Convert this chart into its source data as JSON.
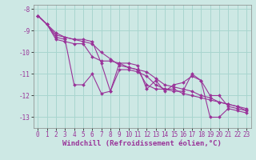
{
  "title": "",
  "xlabel": "Windchill (Refroidissement éolien,°C)",
  "background_color": "#cde8e4",
  "grid_color": "#a8d5cf",
  "line_color": "#993399",
  "series": [
    {
      "x": [
        0,
        1,
        2,
        3,
        4,
        5,
        6,
        7,
        8,
        9,
        10,
        11,
        12,
        13,
        14,
        15,
        16,
        17,
        18,
        19,
        20,
        21,
        22,
        23
      ],
      "y": [
        -8.3,
        -8.7,
        -9.3,
        -9.4,
        -11.5,
        -11.5,
        -11.0,
        -11.9,
        -11.8,
        -10.5,
        -10.5,
        -10.6,
        -11.7,
        -11.3,
        -11.8,
        -11.5,
        -11.4,
        -11.1,
        -11.3,
        -13.0,
        -13.0,
        -12.6,
        -12.7,
        -12.8
      ]
    },
    {
      "x": [
        0,
        1,
        2,
        3,
        4,
        5,
        6,
        7,
        8,
        9,
        10,
        11,
        12,
        13,
        14,
        15,
        16,
        17,
        18,
        19,
        20,
        21,
        22,
        23
      ],
      "y": [
        -8.3,
        -8.7,
        -9.4,
        -9.5,
        -9.6,
        -9.6,
        -10.2,
        -10.4,
        -10.4,
        -10.5,
        -10.7,
        -10.8,
        -11.5,
        -11.7,
        -11.7,
        -11.7,
        -11.9,
        -12.0,
        -12.1,
        -12.2,
        -12.3,
        -12.4,
        -12.5,
        -12.6
      ]
    },
    {
      "x": [
        0,
        1,
        2,
        3,
        4,
        5,
        6,
        7,
        8,
        9,
        10,
        11,
        12,
        13,
        14,
        15,
        16,
        17,
        18,
        19,
        20,
        21,
        22,
        23
      ],
      "y": [
        -8.3,
        -8.7,
        -9.2,
        -9.3,
        -9.4,
        -9.4,
        -9.5,
        -10.5,
        -11.8,
        -10.8,
        -10.8,
        -10.9,
        -11.1,
        -11.5,
        -11.7,
        -11.8,
        -11.8,
        -11.0,
        -11.3,
        -12.0,
        -12.0,
        -12.5,
        -12.6,
        -12.7
      ]
    },
    {
      "x": [
        0,
        2,
        3,
        4,
        5,
        6,
        7,
        8,
        9,
        10,
        11,
        12,
        13,
        14,
        15,
        16,
        17,
        18,
        19,
        20,
        21,
        22,
        23
      ],
      "y": [
        -8.3,
        -9.1,
        -9.3,
        -9.4,
        -9.5,
        -9.6,
        -10.0,
        -10.3,
        -10.6,
        -10.7,
        -10.8,
        -10.9,
        -11.2,
        -11.5,
        -11.6,
        -11.7,
        -11.8,
        -12.0,
        -12.1,
        -12.3,
        -12.4,
        -12.5,
        -12.7
      ]
    }
  ],
  "xlim": [
    -0.5,
    23.5
  ],
  "ylim": [
    -13.5,
    -7.8
  ],
  "yticks": [
    -8,
    -9,
    -10,
    -11,
    -12,
    -13
  ],
  "xticks": [
    0,
    1,
    2,
    3,
    4,
    5,
    6,
    7,
    8,
    9,
    10,
    11,
    12,
    13,
    14,
    15,
    16,
    17,
    18,
    19,
    20,
    21,
    22,
    23
  ],
  "xlabel_fontsize": 6.5,
  "tick_fontsize": 5.5,
  "ylabel_color": "#993399",
  "xlabel_color": "#993399"
}
